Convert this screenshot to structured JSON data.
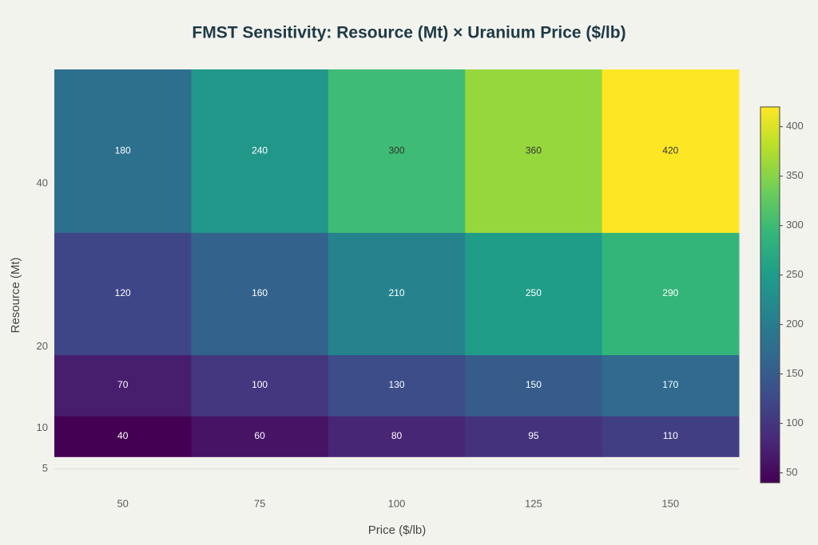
{
  "chart_data": {
    "type": "heatmap",
    "title": "FMST Sensitivity: Resource (Mt) × Uranium Price ($/lb)",
    "x_label": "Price ($/lb)",
    "y_label": "Resource (Mt)",
    "categories": [
      "50",
      "75",
      "100",
      "125",
      "150"
    ],
    "y_bins": [
      6.5,
      11.5,
      19,
      34,
      54
    ],
    "z": [
      [
        40,
        60,
        80,
        95,
        110
      ],
      [
        70,
        100,
        130,
        150,
        170
      ],
      [
        120,
        160,
        210,
        250,
        290
      ],
      [
        180,
        240,
        300,
        360,
        420
      ]
    ],
    "ylim": [
      3.3,
      54
    ],
    "yticks": [
      5,
      10,
      20,
      40
    ],
    "zlim": [
      40,
      420
    ],
    "zticks": [
      50,
      100,
      150,
      200,
      250,
      300,
      350,
      400
    ],
    "colorscale": [
      [
        0,
        "#440154"
      ],
      [
        0.111,
        "#482878"
      ],
      [
        0.222,
        "#3e4989"
      ],
      [
        0.333,
        "#31688e"
      ],
      [
        0.444,
        "#26828e"
      ],
      [
        0.556,
        "#1f9e89"
      ],
      [
        0.667,
        "#35b779"
      ],
      [
        0.778,
        "#6ece58"
      ],
      [
        0.889,
        "#b5de2b"
      ],
      [
        1,
        "#fde725"
      ]
    ],
    "grid": true
  }
}
